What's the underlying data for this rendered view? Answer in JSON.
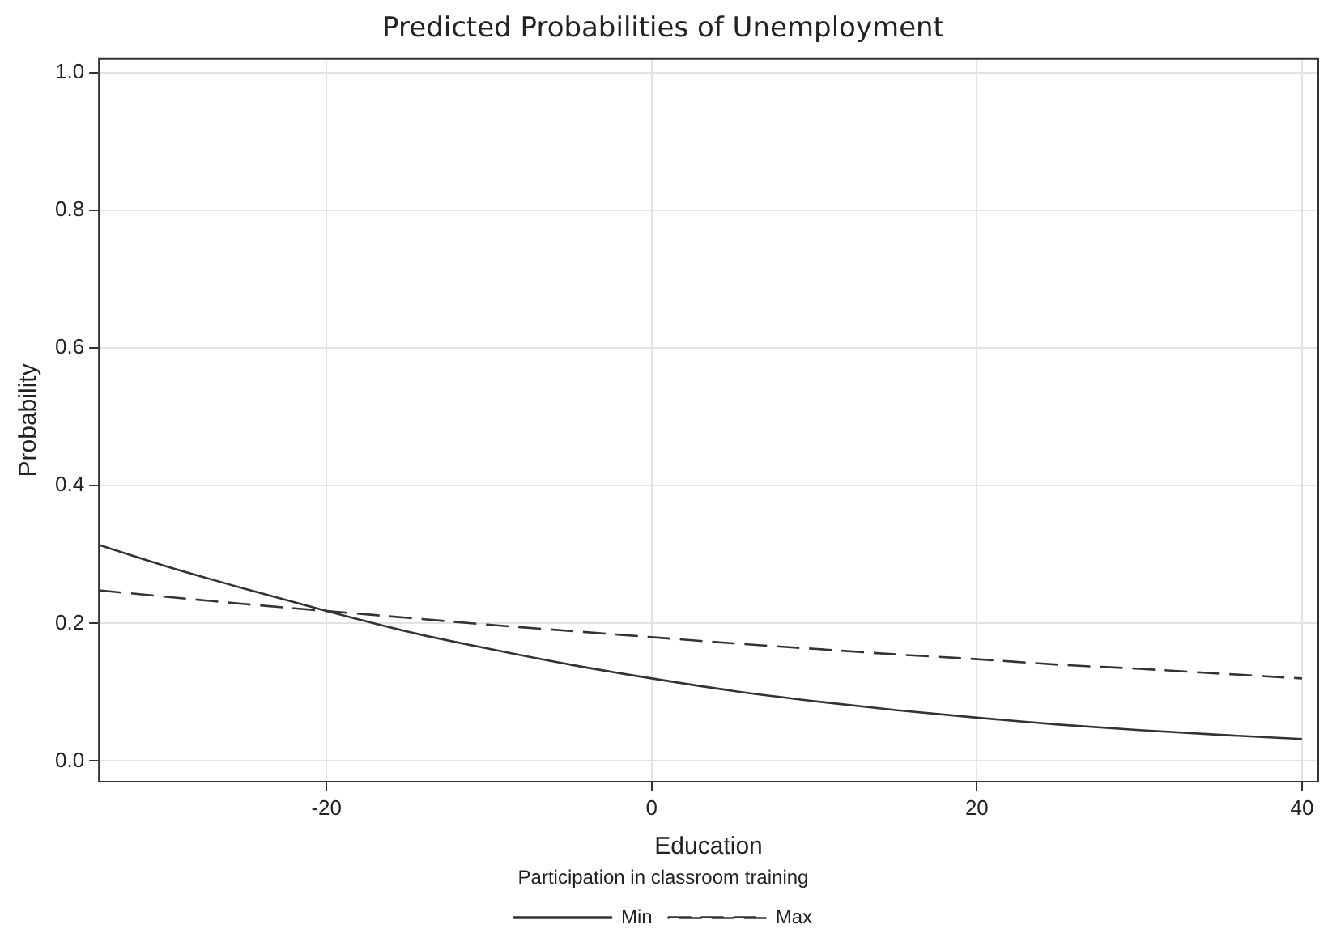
{
  "chart_data": {
    "type": "line",
    "title": "Predicted Probabilities of Unemployment",
    "xlabel": "Education",
    "ylabel": "Probability",
    "legend_title": "Participation in classroom training",
    "x": [
      -34,
      -30,
      -25,
      -20,
      -15,
      -10,
      -5,
      0,
      5,
      10,
      15,
      20,
      25,
      30,
      35,
      40
    ],
    "series": [
      {
        "name": "Min",
        "color": "#333333",
        "line_style": "solid",
        "values": [
          0.314,
          0.284,
          0.25,
          0.218,
          0.188,
          0.163,
          0.14,
          0.12,
          0.102,
          0.087,
          0.074,
          0.063,
          0.053,
          0.045,
          0.038,
          0.032
        ]
      },
      {
        "name": "Max",
        "color": "#333333",
        "line_style": "dashed",
        "values": [
          0.248,
          0.239,
          0.228,
          0.218,
          0.208,
          0.198,
          0.189,
          0.18,
          0.171,
          0.163,
          0.155,
          0.148,
          0.14,
          0.134,
          0.127,
          0.12
        ]
      }
    ],
    "xlim": [
      -34,
      41
    ],
    "xticks": [
      -20,
      0,
      20,
      40
    ],
    "ylim": [
      -0.03,
      1.02
    ],
    "yticks": [
      {
        "value": 0,
        "label": "0.0"
      },
      {
        "value": 0.2,
        "label": "0.2"
      },
      {
        "value": 0.4,
        "label": "0.4"
      },
      {
        "value": 0.6,
        "label": "0.6"
      },
      {
        "value": 0.8,
        "label": "0.8"
      },
      {
        "value": 1,
        "label": "1.0"
      }
    ],
    "grid": true,
    "legend": "bottom",
    "marker": "none"
  }
}
